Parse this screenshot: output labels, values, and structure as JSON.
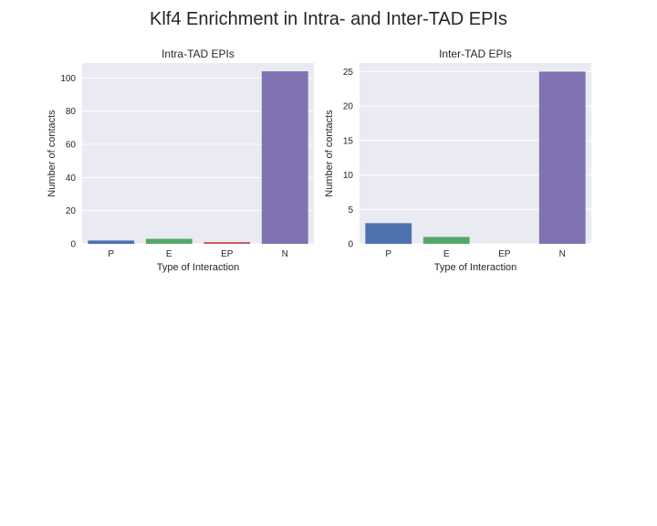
{
  "figure": {
    "title": "Klf4 Enrichment in Intra- and Inter-TAD EPIs"
  },
  "chart_data": [
    {
      "type": "bar",
      "title": "Intra-TAD EPIs",
      "xlabel": "Type of Interaction",
      "ylabel": "Number of contacts",
      "categories": [
        "P",
        "E",
        "EP",
        "N"
      ],
      "values": [
        2,
        3,
        1,
        104
      ],
      "colors": [
        "#4c72b0",
        "#55a868",
        "#c44e52",
        "#8172b2"
      ],
      "ylim": [
        0,
        109
      ],
      "yticks": [
        0,
        20,
        40,
        60,
        80,
        100
      ],
      "grid": true,
      "legend": "none"
    },
    {
      "type": "bar",
      "title": "Inter-TAD EPIs",
      "xlabel": "Type of Interaction",
      "ylabel": "Number of contacts",
      "categories": [
        "P",
        "E",
        "EP",
        "N"
      ],
      "values": [
        3,
        1,
        0,
        25
      ],
      "colors": [
        "#4c72b0",
        "#55a868",
        "#c44e52",
        "#8172b2"
      ],
      "ylim": [
        0,
        26.25
      ],
      "yticks": [
        0,
        5,
        10,
        15,
        20,
        25
      ],
      "grid": true,
      "legend": "none"
    }
  ]
}
